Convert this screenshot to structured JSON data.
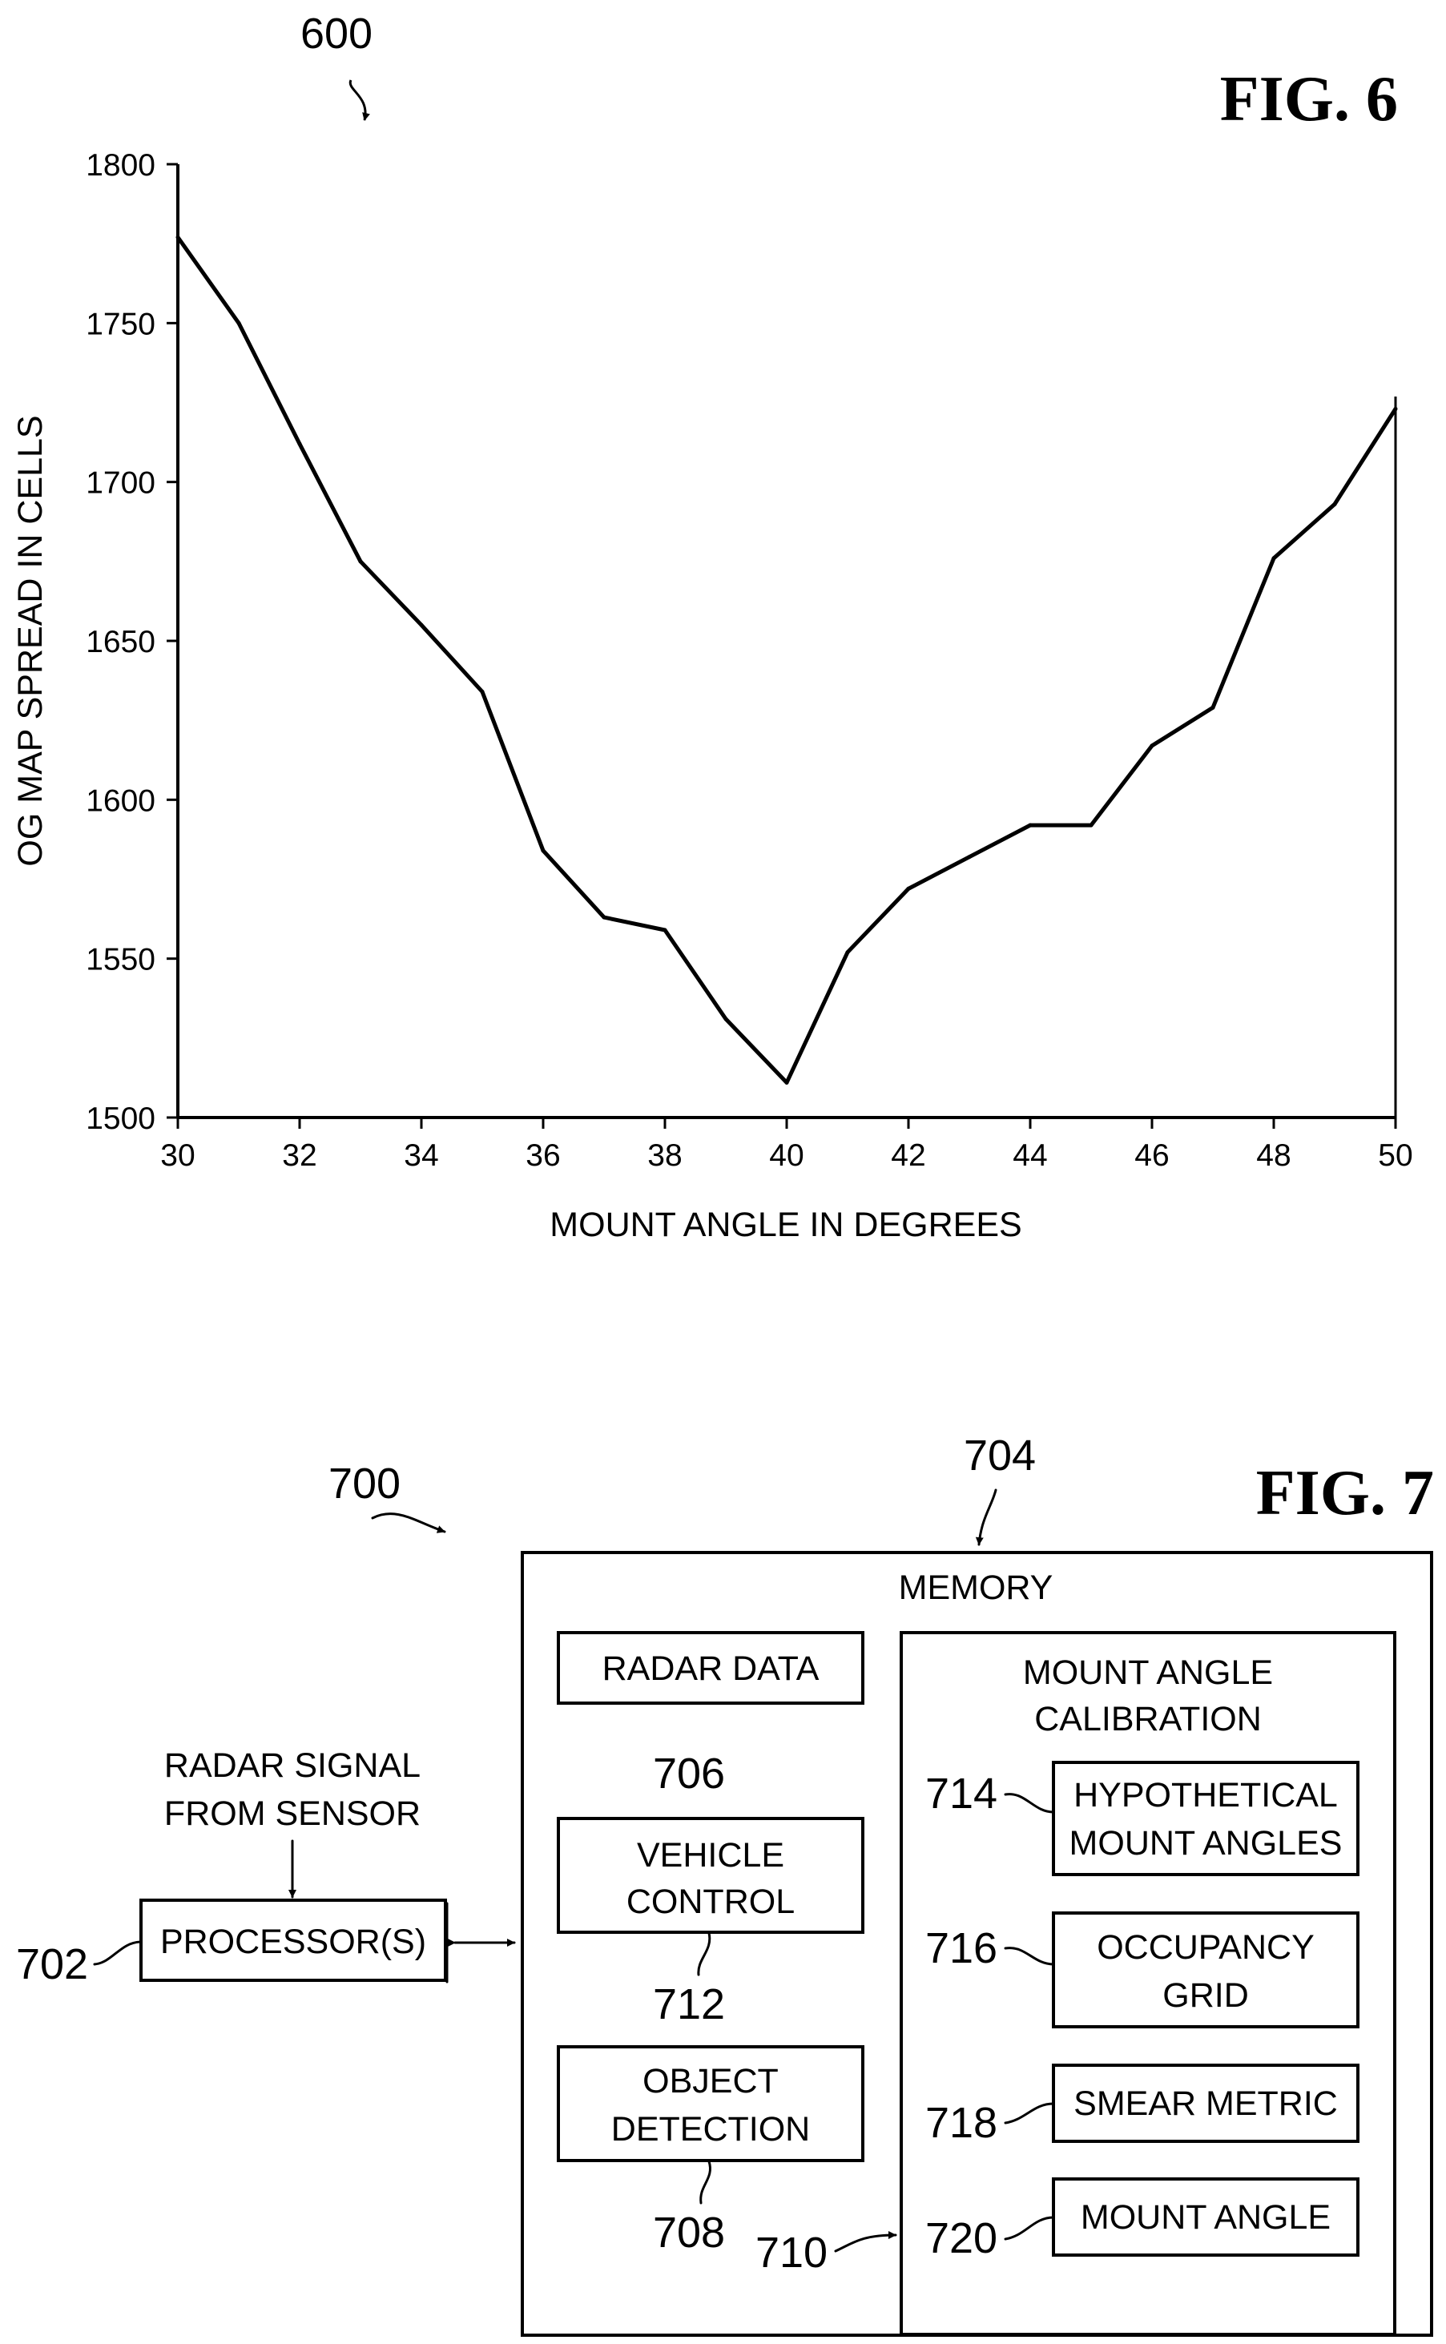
{
  "fig6": {
    "title": "FIG. 6",
    "ref": "600",
    "chart_data": {
      "type": "line",
      "title": "",
      "xlabel": "MOUNT ANGLE IN DEGREES",
      "ylabel": "OG MAP SPREAD IN CELLS",
      "xlim": [
        30,
        50
      ],
      "ylim": [
        1500,
        1800
      ],
      "x_ticks": [
        "30",
        "32",
        "34",
        "36",
        "38",
        "40",
        "42",
        "44",
        "46",
        "48",
        "50"
      ],
      "y_ticks": [
        "1500",
        "1550",
        "1600",
        "1650",
        "1700",
        "1750",
        "1800"
      ],
      "grid": false,
      "legend": "none",
      "series": [
        {
          "x": [
            30,
            31,
            32,
            33,
            34,
            35,
            36,
            37,
            38,
            39,
            40,
            41,
            42,
            43,
            44,
            45,
            46,
            47,
            48,
            49,
            50
          ],
          "y": [
            1777,
            1750,
            1712,
            1675,
            1655,
            1634,
            1584,
            1563,
            1559,
            1531,
            1511,
            1552,
            1572,
            1582,
            1592,
            1592,
            1617,
            1629,
            1676,
            1693,
            1723
          ]
        }
      ]
    }
  },
  "fig7": {
    "title": "FIG. 7",
    "ref_700": "700",
    "ref_702": "702",
    "ref_704": "704",
    "ref_706": "706",
    "ref_708": "708",
    "ref_710": "710",
    "ref_712": "712",
    "ref_714": "714",
    "ref_716": "716",
    "ref_718": "718",
    "ref_720": "720",
    "memory_label": "MEMORY",
    "radar_signal": [
      "RADAR SIGNAL",
      "FROM SENSOR"
    ],
    "processor": "PROCESSOR(S)",
    "radar_data": "RADAR DATA",
    "vehicle_control": [
      "VEHICLE",
      "CONTROL"
    ],
    "object_detection": [
      "OBJECT",
      "DETECTION"
    ],
    "calibration": [
      "MOUNT ANGLE",
      "CALIBRATION"
    ],
    "hypothetical": [
      "HYPOTHETICAL",
      "MOUNT ANGLES"
    ],
    "occupancy": [
      "OCCUPANCY",
      "GRID"
    ],
    "smear": "SMEAR METRIC",
    "mount_angle": "MOUNT ANGLE"
  }
}
